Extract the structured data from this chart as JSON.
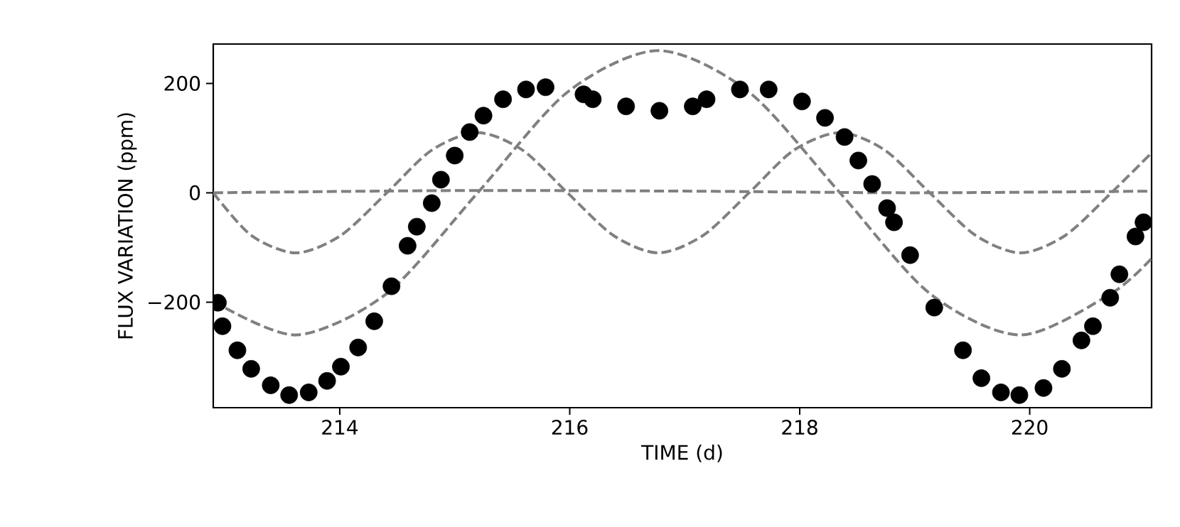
{
  "chart_data": {
    "type": "scatter",
    "xlabel": "TIME (d)",
    "ylabel": "FLUX VARIATION (ppm)",
    "xlim": [
      212.9,
      221.06
    ],
    "ylim": [
      -393,
      272
    ],
    "xticks": [
      214,
      216,
      218,
      220
    ],
    "yticks": [
      {
        "value": -200,
        "label": "−200"
      },
      0,
      200
    ],
    "marker": "circle",
    "series": [
      {
        "type": "line",
        "color": "#808080",
        "line_style": "dashed",
        "marker": "none",
        "x": [
          212.9,
          213.62,
          214.41,
          215.2,
          215.98,
          216.77,
          217.56,
          218.35,
          219.13,
          219.92,
          220.71,
          221.06
        ],
        "values": [
          -198,
          -260,
          -184,
          0,
          184,
          260,
          184,
          0,
          -184,
          -260,
          -184,
          -120
        ]
      },
      {
        "type": "line",
        "color": "#808080",
        "line_style": "dashed",
        "marker": "none",
        "x": [
          212.9,
          213.23,
          213.62,
          214.01,
          214.41,
          214.8,
          215.2,
          215.59,
          215.98,
          216.38,
          216.77,
          217.16,
          217.56,
          217.95,
          218.35,
          218.74,
          219.13,
          219.53,
          219.92,
          220.31,
          220.71,
          221.06
        ],
        "values": [
          0,
          -78,
          -110,
          -78,
          0,
          78,
          110,
          78,
          0,
          -78,
          -110,
          -78,
          0,
          78,
          110,
          78,
          0,
          -78,
          -110,
          -78,
          0,
          73
        ]
      },
      {
        "type": "line",
        "color": "#808080",
        "line_style": "dashed",
        "marker": "none",
        "x": [
          212.9,
          215,
          217,
          219,
          221.06
        ],
        "values": [
          0,
          4,
          3,
          0,
          3
        ]
      },
      {
        "color": "#000000",
        "x": [
          212.94,
          212.98,
          213.11,
          213.23,
          213.4,
          213.56,
          213.73,
          213.89,
          214.01,
          214.16,
          214.3,
          214.45,
          214.59,
          214.67,
          214.8,
          214.88,
          215.0,
          215.13,
          215.25,
          215.42,
          215.62,
          215.79,
          216.12,
          216.2,
          216.49,
          216.78,
          217.07,
          217.19,
          217.48,
          217.73,
          218.02,
          218.22,
          218.39,
          218.51,
          218.63,
          218.76,
          218.82,
          218.96,
          219.17,
          219.42,
          219.58,
          219.75,
          219.91,
          220.12,
          220.28,
          220.45,
          220.55,
          220.7,
          220.78,
          220.92,
          220.99
        ],
        "values": [
          -201,
          -244,
          -288,
          -322,
          -352,
          -370,
          -365,
          -344,
          -318,
          -283,
          -235,
          -171,
          -97,
          -62,
          -19,
          24,
          68,
          111,
          141,
          171,
          189,
          193,
          180,
          171,
          158,
          150,
          158,
          171,
          189,
          189,
          167,
          137,
          102,
          59,
          16,
          -28,
          -54,
          -114,
          -210,
          -288,
          -339,
          -365,
          -370,
          -357,
          -322,
          -270,
          -244,
          -192,
          -149,
          -80,
          -54
        ]
      }
    ]
  }
}
